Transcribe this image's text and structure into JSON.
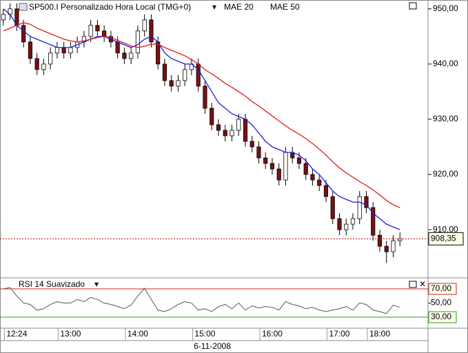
{
  "chart_data": {
    "type": "candlestick",
    "title": "SP500.I Personalizado Hora Local (TMG+0)",
    "date_label": "6-11-2008",
    "open": [
      948,
      949,
      950,
      947,
      944,
      941,
      939,
      940,
      942,
      943,
      942,
      943,
      944,
      945,
      947,
      946,
      945,
      944,
      942,
      941,
      942,
      946,
      948,
      944,
      940,
      937,
      936,
      937,
      939,
      940,
      936,
      932,
      929,
      928,
      927,
      928,
      930,
      926,
      925,
      923,
      922,
      921,
      919,
      924,
      923,
      922,
      920,
      919,
      918,
      916,
      912,
      910,
      911,
      912,
      916,
      914,
      909,
      907,
      906,
      908
    ],
    "high": [
      950,
      951,
      951,
      948,
      945,
      942,
      941,
      943,
      944,
      944,
      944,
      945,
      946,
      948,
      948,
      947,
      946,
      945,
      943,
      943,
      947,
      949,
      949,
      945,
      941,
      938,
      938,
      940,
      941,
      941,
      937,
      933,
      930,
      929,
      929,
      931,
      931,
      927,
      926,
      924,
      923,
      922,
      925,
      925,
      924,
      923,
      921,
      920,
      919,
      917,
      913,
      912,
      913,
      917,
      917,
      915,
      910,
      908,
      909,
      909.5
    ],
    "low": [
      947,
      948,
      946,
      943,
      940,
      938,
      938,
      939,
      941,
      941,
      941,
      942,
      943,
      944,
      945,
      944,
      943,
      941,
      940,
      940,
      941,
      945,
      943,
      939,
      936,
      935,
      935,
      936,
      938,
      935,
      931,
      928,
      927,
      926,
      926,
      927,
      925,
      924,
      922,
      921,
      920,
      918,
      918,
      922,
      921,
      919,
      918,
      917,
      915,
      911,
      909,
      909,
      910,
      911,
      913,
      908,
      906,
      904,
      905,
      907
    ],
    "close": [
      949,
      950,
      947,
      944,
      941,
      939,
      940,
      942,
      943,
      942,
      943,
      944,
      945,
      947,
      946,
      945,
      944,
      942,
      941,
      942,
      946,
      948,
      944,
      940,
      937,
      936,
      937,
      939,
      940,
      936,
      932,
      929,
      928,
      927,
      928,
      930,
      926,
      925,
      923,
      922,
      921,
      919,
      924,
      923,
      922,
      920,
      919,
      918,
      916,
      912,
      910,
      911,
      912,
      916,
      914,
      909,
      907,
      906,
      908,
      908.35
    ],
    "up_color": "#ffffff",
    "down_color": "#7a1010",
    "series": [
      {
        "name": "MAE 20",
        "color": "#1c1ce0",
        "values": [
          950,
          949,
          947,
          946,
          945,
          944.5,
          944,
          943.5,
          943,
          943,
          943,
          943.5,
          944,
          944.5,
          945,
          945,
          944.5,
          944,
          943.5,
          943,
          943.5,
          944.5,
          945,
          944,
          942,
          941,
          940.5,
          940,
          940,
          939,
          937,
          935,
          933,
          932,
          931,
          930.5,
          930,
          929,
          927.5,
          926,
          925,
          924.5,
          924,
          924,
          923.5,
          922.5,
          921,
          920,
          918.5,
          917,
          916,
          915.5,
          915,
          915,
          914.5,
          913,
          912,
          911,
          910.5,
          910
        ]
      },
      {
        "name": "MAE 50",
        "color": "#e01c1c",
        "values": [
          946,
          946.5,
          947,
          947.5,
          947.2,
          946.5,
          946,
          945.5,
          945,
          944.5,
          944.2,
          944,
          944.2,
          944.5,
          944.8,
          945,
          944.8,
          944.3,
          943.8,
          943.3,
          943,
          943.2,
          943.6,
          943.6,
          943,
          942.5,
          942,
          941.5,
          940.8,
          940,
          939,
          938.2,
          937.4,
          936.5,
          935.8,
          935,
          934.2,
          933.2,
          932.4,
          931.5,
          930.6,
          929.7,
          928.8,
          928,
          927.3,
          926.5,
          925.6,
          924.6,
          923.5,
          922.3,
          921.2,
          920.3,
          919.5,
          918.7,
          918,
          917.2,
          916.3,
          915.3,
          914.5,
          914
        ]
      }
    ],
    "last_price": {
      "value": 908.35,
      "label": "908,35"
    },
    "ylim": [
      901.4,
      951.6
    ],
    "yticks": [
      {
        "value": 910,
        "label": "910,00"
      },
      {
        "value": 920,
        "label": "920,00"
      },
      {
        "value": 930,
        "label": "930,00"
      },
      {
        "value": 940,
        "label": "940,00"
      },
      {
        "value": 950,
        "label": "950,00"
      }
    ],
    "xlim": [
      -0.5,
      60
    ],
    "xticks": [
      {
        "value": 2,
        "label": "12:24"
      },
      {
        "value": 10,
        "label": "13:00"
      },
      {
        "value": 20,
        "label": "14:00"
      },
      {
        "value": 30,
        "label": "15:00"
      },
      {
        "value": 40,
        "label": "16:00"
      },
      {
        "value": 50,
        "label": "17:00"
      },
      {
        "value": 56,
        "label": "18:00"
      }
    ],
    "rsi": {
      "title": "RSI 14 Suavizado",
      "color": "#555555",
      "values": [
        70,
        72,
        60,
        50,
        48,
        40,
        42,
        48,
        52,
        50,
        50,
        55,
        52,
        58,
        55,
        50,
        48,
        45,
        42,
        47,
        60,
        71,
        55,
        40,
        38,
        42,
        48,
        52,
        50,
        40,
        42,
        38,
        45,
        48,
        42,
        50,
        40,
        46,
        43,
        45,
        44,
        40,
        52,
        48,
        46,
        42,
        44,
        40,
        38,
        40,
        42,
        45,
        40,
        50,
        48,
        40,
        38,
        35,
        47,
        44
      ],
      "ylim": [
        15.4,
        83.7
      ],
      "yticks": [
        {
          "value": 30,
          "label": "30,00"
        },
        {
          "value": 50,
          "label": "50,00"
        },
        {
          "value": 70,
          "label": "70,00"
        }
      ],
      "upper_color": "#d02020",
      "lower_color": "#20a020"
    }
  }
}
